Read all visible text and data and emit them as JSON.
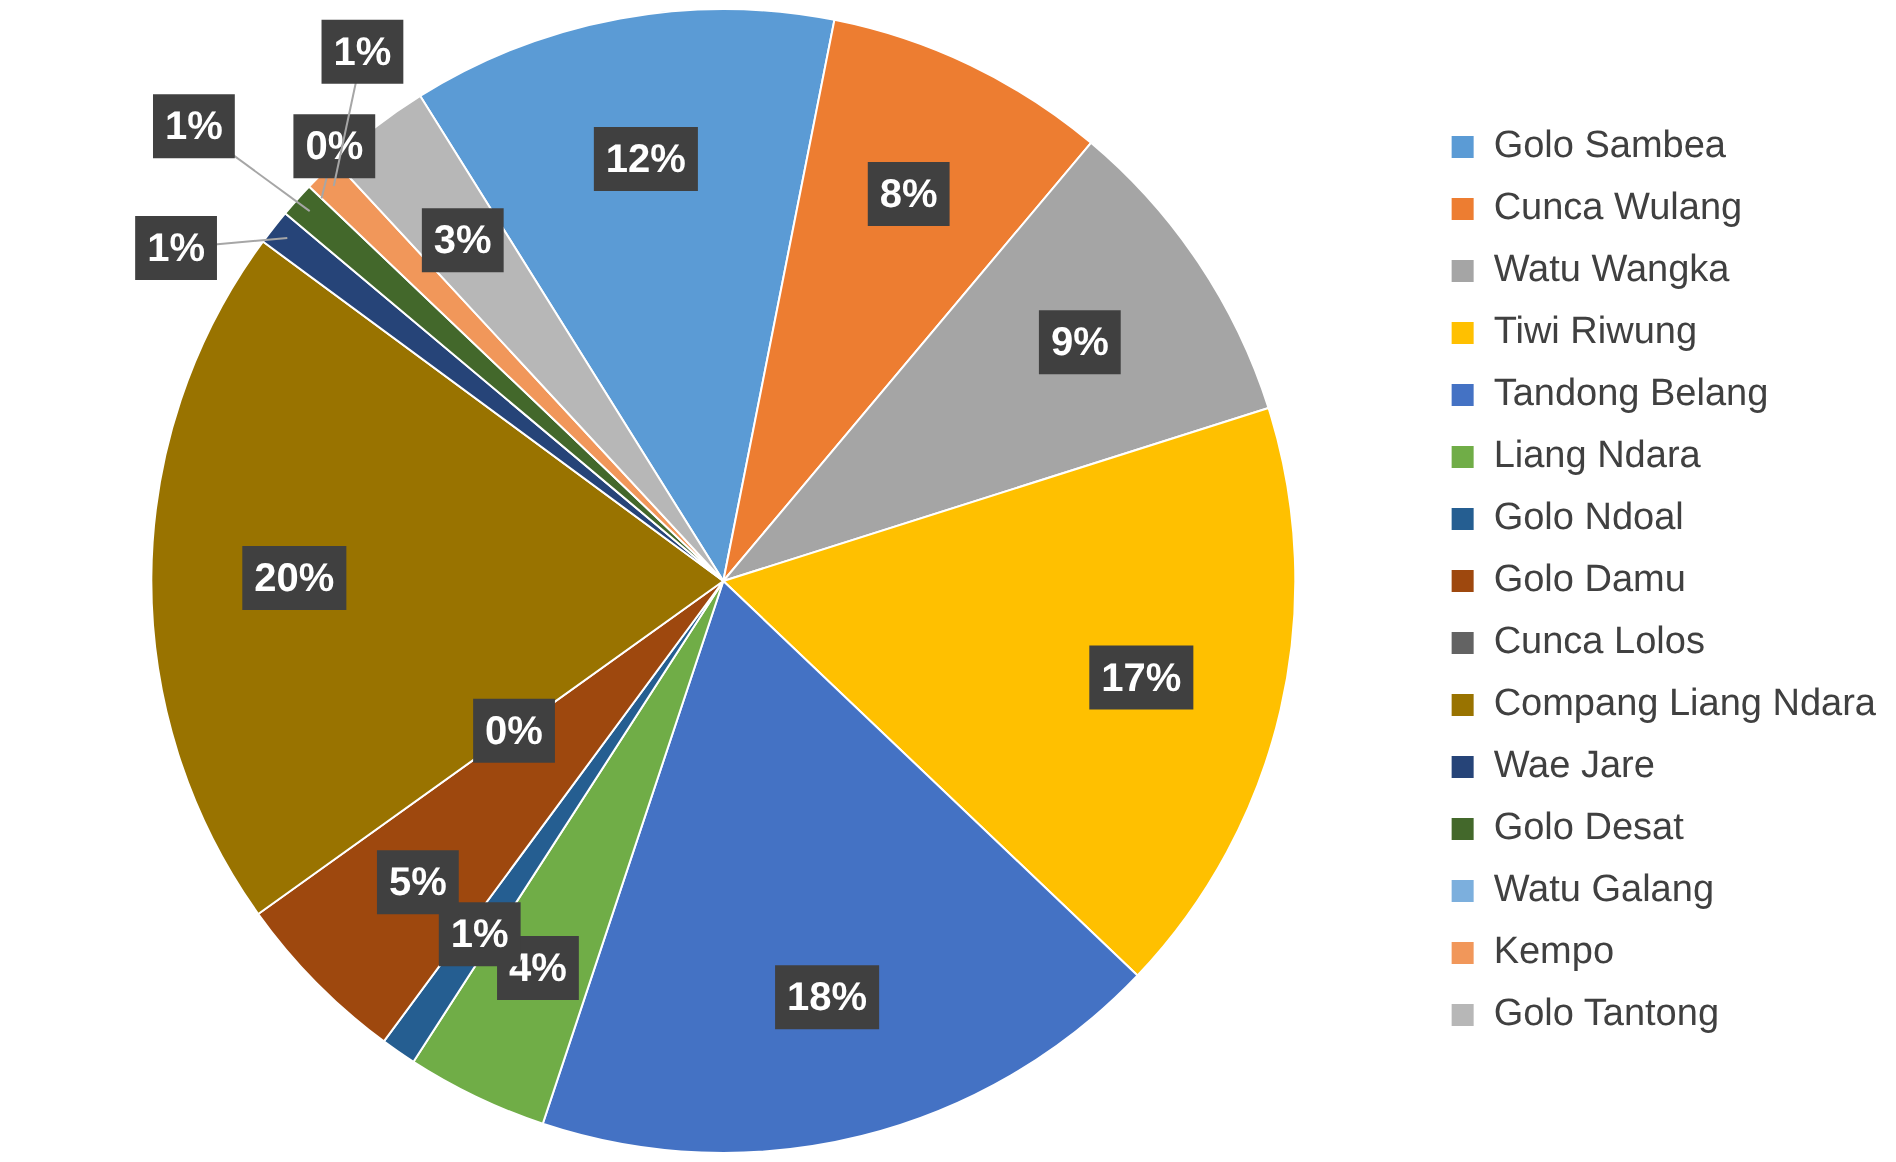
{
  "chart_data": {
    "type": "pie",
    "categories": [
      "Golo Sambea",
      "Cunca Wulang",
      "Watu Wangka",
      "Tiwi Riwung",
      "Tandong Belang",
      "Liang Ndara",
      "Golo Ndoal",
      "Golo Damu",
      "Cunca Lolos",
      "Compang Liang Ndara",
      "Wae Jare",
      "Golo Desat",
      "Watu Galang",
      "Kempo",
      "Golo Tantong"
    ],
    "values": [
      12,
      8,
      9,
      17,
      18,
      4,
      1,
      5,
      0,
      20,
      1,
      1,
      0,
      1,
      3
    ],
    "colors": [
      "#5b9bd5",
      "#ed7d31",
      "#a5a5a5",
      "#ffc000",
      "#4472c4",
      "#70ad47",
      "#255e91",
      "#9e480e",
      "#636363",
      "#997300",
      "#264478",
      "#43682b",
      "#7cafdd",
      "#f1975a",
      "#b7b7b7"
    ],
    "value_labels": [
      "12%",
      "8%",
      "9%",
      "17%",
      "18%",
      "4%",
      "1%",
      "5%",
      "0%",
      "20%",
      "1%",
      "1%",
      "0%",
      "1%",
      "3%"
    ],
    "legend": "right"
  }
}
